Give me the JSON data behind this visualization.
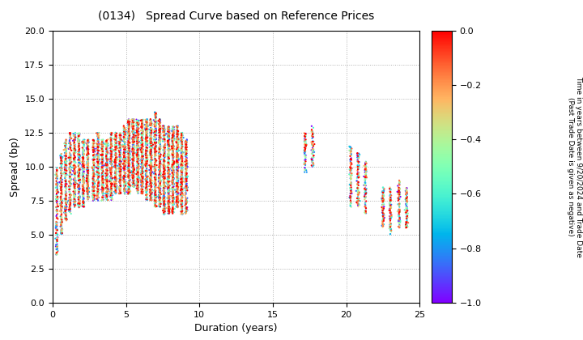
{
  "title": "(0134)   Spread Curve based on Reference Prices",
  "xlabel": "Duration (years)",
  "ylabel": "Spread (bp)",
  "colorbar_label": "Time in years between 9/20/2024 and Trade Date\n(Past Trade Date is given as negative)",
  "xlim": [
    0,
    25
  ],
  "ylim": [
    0.0,
    20.0
  ],
  "xticks": [
    0,
    5,
    10,
    15,
    20,
    25
  ],
  "yticks": [
    0.0,
    2.5,
    5.0,
    7.5,
    10.0,
    12.5,
    15.0,
    17.5,
    20.0
  ],
  "cmap": "rainbow",
  "clim": [
    -1.0,
    0.0
  ],
  "cticks": [
    0.0,
    -0.2,
    -0.4,
    -0.6,
    -0.8,
    -1.0
  ],
  "background_color": "#ffffff",
  "grid_color": "#b0b0b0",
  "dot_size": 2.5,
  "bond_groups": [
    {
      "dur": 0.3,
      "n_dates": 8,
      "spread_min": 3.5,
      "spread_max": 10.0,
      "n_per_date": 18
    },
    {
      "dur": 0.6,
      "n_dates": 10,
      "spread_min": 5.0,
      "spread_max": 11.0,
      "n_per_date": 20
    },
    {
      "dur": 0.9,
      "n_dates": 10,
      "spread_min": 6.0,
      "spread_max": 12.0,
      "n_per_date": 20
    },
    {
      "dur": 1.2,
      "n_dates": 10,
      "spread_min": 6.5,
      "spread_max": 12.5,
      "n_per_date": 20
    },
    {
      "dur": 1.5,
      "n_dates": 10,
      "spread_min": 7.0,
      "spread_max": 12.5,
      "n_per_date": 20
    },
    {
      "dur": 1.8,
      "n_dates": 10,
      "spread_min": 7.0,
      "spread_max": 12.5,
      "n_per_date": 20
    },
    {
      "dur": 2.1,
      "n_dates": 10,
      "spread_min": 7.0,
      "spread_max": 12.0,
      "n_per_date": 20
    },
    {
      "dur": 2.4,
      "n_dates": 10,
      "spread_min": 7.5,
      "spread_max": 12.0,
      "n_per_date": 20
    },
    {
      "dur": 2.8,
      "n_dates": 10,
      "spread_min": 7.5,
      "spread_max": 12.0,
      "n_per_date": 20
    },
    {
      "dur": 3.1,
      "n_dates": 10,
      "spread_min": 7.5,
      "spread_max": 12.5,
      "n_per_date": 20
    },
    {
      "dur": 3.4,
      "n_dates": 10,
      "spread_min": 7.5,
      "spread_max": 12.0,
      "n_per_date": 20
    },
    {
      "dur": 3.7,
      "n_dates": 10,
      "spread_min": 7.5,
      "spread_max": 12.0,
      "n_per_date": 20
    },
    {
      "dur": 4.0,
      "n_dates": 10,
      "spread_min": 7.5,
      "spread_max": 12.5,
      "n_per_date": 22
    },
    {
      "dur": 4.3,
      "n_dates": 10,
      "spread_min": 8.0,
      "spread_max": 12.5,
      "n_per_date": 22
    },
    {
      "dur": 4.6,
      "n_dates": 10,
      "spread_min": 8.0,
      "spread_max": 12.5,
      "n_per_date": 22
    },
    {
      "dur": 4.9,
      "n_dates": 10,
      "spread_min": 8.0,
      "spread_max": 13.0,
      "n_per_date": 22
    },
    {
      "dur": 5.2,
      "n_dates": 12,
      "spread_min": 8.0,
      "spread_max": 13.5,
      "n_per_date": 24
    },
    {
      "dur": 5.5,
      "n_dates": 12,
      "spread_min": 8.5,
      "spread_max": 13.5,
      "n_per_date": 24
    },
    {
      "dur": 5.8,
      "n_dates": 12,
      "spread_min": 8.0,
      "spread_max": 13.5,
      "n_per_date": 24
    },
    {
      "dur": 6.1,
      "n_dates": 12,
      "spread_min": 8.0,
      "spread_max": 13.5,
      "n_per_date": 24
    },
    {
      "dur": 6.4,
      "n_dates": 12,
      "spread_min": 7.5,
      "spread_max": 13.5,
      "n_per_date": 24
    },
    {
      "dur": 6.7,
      "n_dates": 12,
      "spread_min": 7.5,
      "spread_max": 13.5,
      "n_per_date": 26
    },
    {
      "dur": 7.0,
      "n_dates": 12,
      "spread_min": 7.0,
      "spread_max": 14.0,
      "n_per_date": 26
    },
    {
      "dur": 7.3,
      "n_dates": 12,
      "spread_min": 7.0,
      "spread_max": 13.5,
      "n_per_date": 26
    },
    {
      "dur": 7.6,
      "n_dates": 12,
      "spread_min": 6.5,
      "spread_max": 13.0,
      "n_per_date": 26
    },
    {
      "dur": 7.9,
      "n_dates": 12,
      "spread_min": 6.5,
      "spread_max": 13.0,
      "n_per_date": 26
    },
    {
      "dur": 8.2,
      "n_dates": 12,
      "spread_min": 6.5,
      "spread_max": 13.0,
      "n_per_date": 26
    },
    {
      "dur": 8.5,
      "n_dates": 12,
      "spread_min": 7.0,
      "spread_max": 13.0,
      "n_per_date": 26
    },
    {
      "dur": 8.8,
      "n_dates": 12,
      "spread_min": 6.5,
      "spread_max": 12.5,
      "n_per_date": 24
    },
    {
      "dur": 9.1,
      "n_dates": 10,
      "spread_min": 6.5,
      "spread_max": 12.0,
      "n_per_date": 22
    },
    {
      "dur": 17.2,
      "n_dates": 6,
      "spread_min": 9.5,
      "spread_max": 12.5,
      "n_per_date": 12
    },
    {
      "dur": 17.7,
      "n_dates": 6,
      "spread_min": 10.0,
      "spread_max": 13.0,
      "n_per_date": 12
    },
    {
      "dur": 20.3,
      "n_dates": 8,
      "spread_min": 7.0,
      "spread_max": 11.5,
      "n_per_date": 14
    },
    {
      "dur": 20.8,
      "n_dates": 8,
      "spread_min": 7.0,
      "spread_max": 11.0,
      "n_per_date": 14
    },
    {
      "dur": 21.3,
      "n_dates": 8,
      "spread_min": 6.5,
      "spread_max": 10.5,
      "n_per_date": 12
    },
    {
      "dur": 22.5,
      "n_dates": 8,
      "spread_min": 5.5,
      "spread_max": 8.5,
      "n_per_date": 12
    },
    {
      "dur": 23.0,
      "n_dates": 8,
      "spread_min": 5.0,
      "spread_max": 8.5,
      "n_per_date": 12
    },
    {
      "dur": 23.6,
      "n_dates": 8,
      "spread_min": 5.5,
      "spread_max": 9.0,
      "n_per_date": 12
    },
    {
      "dur": 24.1,
      "n_dates": 8,
      "spread_min": 5.5,
      "spread_max": 8.5,
      "n_per_date": 12
    }
  ]
}
